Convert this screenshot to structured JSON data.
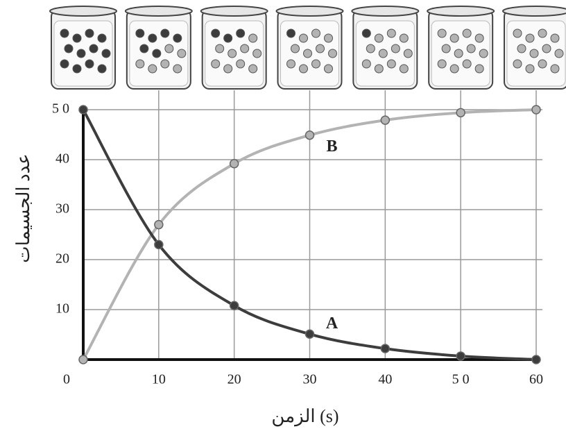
{
  "chart_data": {
    "type": "line",
    "x": [
      0,
      10,
      20,
      30,
      40,
      50,
      60
    ],
    "series": [
      {
        "name": "A",
        "color": "#3d3d3d",
        "values": [
          50,
          23,
          10.8,
          5.1,
          2.2,
          0.7,
          0
        ]
      },
      {
        "name": "B",
        "color": "#b3b3b3",
        "values": [
          0,
          27,
          39.2,
          44.9,
          47.9,
          49.4,
          50
        ]
      }
    ],
    "xlim": [
      0,
      60
    ],
    "ylim": [
      0,
      50
    ],
    "xticks": [
      0,
      10,
      20,
      30,
      40,
      {
        "value": 50,
        "label": "5 0"
      },
      60
    ],
    "yticks": [
      10,
      20,
      30,
      40,
      {
        "value": 50,
        "label": "5 0"
      }
    ],
    "xlabel": "الزمن (s)",
    "ylabel": "عدد الجسيمات",
    "grid": true
  }
}
